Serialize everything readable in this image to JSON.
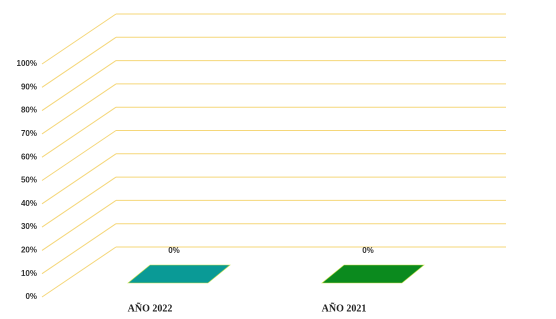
{
  "chart_data": {
    "type": "bar3d",
    "categories": [
      "AÑO 2022",
      "AÑO 2021"
    ],
    "values": [
      0,
      0
    ],
    "value_labels": [
      "0%",
      "0%"
    ],
    "colors": [
      "#0a9a96",
      "#0b8a1e"
    ],
    "ylim": [
      0,
      100
    ],
    "yticks": [
      {
        "value": 0,
        "label": "0%"
      },
      {
        "value": 10,
        "label": "10%"
      },
      {
        "value": 20,
        "label": "20%"
      },
      {
        "value": 30,
        "label": "30%"
      },
      {
        "value": 40,
        "label": "40%"
      },
      {
        "value": 50,
        "label": "50%"
      },
      {
        "value": 60,
        "label": "60%"
      },
      {
        "value": 70,
        "label": "70%"
      },
      {
        "value": 80,
        "label": "80%"
      },
      {
        "value": 90,
        "label": "90%"
      },
      {
        "value": 100,
        "label": "100%"
      }
    ],
    "grid": true
  }
}
